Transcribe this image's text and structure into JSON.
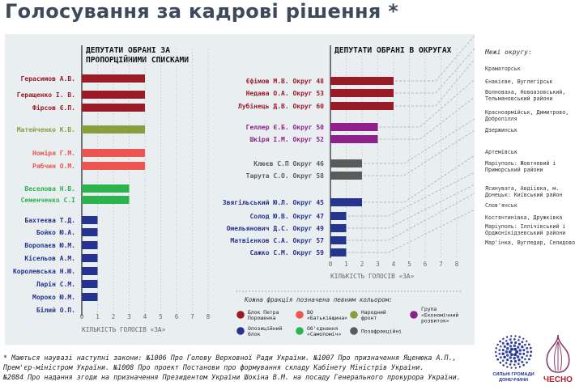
{
  "title": "Голосування за кадрові рішення *",
  "chart_data": [
    {
      "type": "bar",
      "orientation": "horizontal",
      "title": "ДЕПУТАТИ ОБРАНІ ЗА ПРОПОРЦІЙНИМИ СПИСКАМИ",
      "xlabel": "КІЛЬКІСТЬ ГОЛОСІВ «ЗА»",
      "xlim": [
        0,
        8
      ],
      "xticks": [
        "0",
        "1",
        "2",
        "3",
        "4",
        "5",
        "6",
        "7",
        "8"
      ],
      "categories": [
        "Герасимов А.В.",
        "Геращенко І. В.",
        "Фірсов Є.П.",
        "Матейченко К.В.",
        "Номіря Г.М.",
        "Рябчин О.М.",
        "Веселова Н.В.",
        "Семенченко С.І",
        "Бахтеєва Т.Д.",
        "Бойко Ю.А.",
        "Воропаєв Ю.М.",
        "Кісельов А.М.",
        "Королевська Н.Ю.",
        "Ларін С.М.",
        "Мороко Ю.М.",
        "Білий О.П."
      ],
      "values": [
        4,
        4,
        4,
        4,
        4,
        4,
        3,
        3,
        1,
        1,
        1,
        1,
        1,
        1,
        1,
        0
      ],
      "factions": [
        "bpp",
        "bpp",
        "bpp",
        "nf",
        "batk",
        "batk",
        "samo",
        "samo",
        "opz",
        "opz",
        "opz",
        "opz",
        "opz",
        "opz",
        "opz",
        "opz"
      ]
    },
    {
      "type": "bar",
      "orientation": "horizontal",
      "title": "ДЕПУТАТИ ОБРАНІ В ОКРУГАХ",
      "xlabel": "КІЛЬКІСТЬ ГОЛОСІВ «ЗА»",
      "xlim": [
        0,
        8
      ],
      "xticks": [
        "0",
        "1",
        "2",
        "3",
        "4",
        "5",
        "6",
        "7",
        "8"
      ],
      "categories": [
        "Єфімов М.В. Округ 48",
        "Недава О.А. Округ 53",
        "Лубінець Д.В. Округ 60",
        "Геллер Є.Б. Округ 50",
        "Шкіря І.М. Округ 52",
        "Клюєв С.П Округ 46",
        "Тарута С.О. Округ 58",
        "Звягільський Ю.Л. Округ 45",
        "Солод Ю.В. Округ 47",
        "Омельянович Д.С. Округ 49",
        "Матвієнков С.А. Округ 57",
        "Сажко С.М. Округ 59"
      ],
      "values": [
        4,
        4,
        4,
        3,
        3,
        2,
        2,
        2,
        1,
        1,
        1,
        1
      ],
      "factions": [
        "bpp",
        "bpp",
        "bpp",
        "econ",
        "econ",
        "nonf",
        "nonf",
        "opz",
        "opz",
        "opz",
        "opz",
        "opz"
      ]
    }
  ],
  "colors": {
    "bpp": "#9b1b27",
    "batk": "#ee5550",
    "nf": "#86a03c",
    "econ": "#8f1f8a",
    "opz": "#26338f",
    "samo": "#2db34e",
    "nonf": "#5b5b5b",
    "leader_line": "#a0a8b0"
  },
  "legend": {
    "title": "Кожна фракція позначена певним кольором:",
    "items": [
      {
        "key": "bpp",
        "label": "Блок Петра Порошенка"
      },
      {
        "key": "batk",
        "label": "ВО «Батьківщина»"
      },
      {
        "key": "nf",
        "label": "Народний фронт"
      },
      {
        "key": "econ",
        "label": "Група «Економічний розвиток»"
      },
      {
        "key": "opz",
        "label": "Опозиційний блок"
      },
      {
        "key": "samo",
        "label": "Об'єднання «Самопоміч»"
      },
      {
        "key": "nonf",
        "label": "Позафракційні"
      }
    ]
  },
  "districts": {
    "title": "Межі округу:",
    "items": [
      "Краматорськ",
      "Єнакієве, Вуглегірськ",
      "Волноваха, Новоазовський, Тельмановський райони",
      "Красноармійськ, Димитрово, Добропілля",
      "Дзержинськ",
      "Артемівськ",
      "Маріуполь: Жовтневий і Приморський райони",
      "Ясинувата, Авдіївка, м. Донецьк: Київський район",
      "Слов'янськ",
      "Костянтинівка, Дружківка",
      "Маріуполь: Іллічівський і Орджонікідзевський райони",
      "Мар'їнка, Вугледар, Селидово"
    ]
  },
  "footnote": [
    "* Маються наувазі наступні закони: №1006 Про Голову Верховної Ради України. №1007 Про призначення Яценюка А.П.,",
    "Прем'єр-міністром України. №1008 Про проект Постанови про формування складу Кабінету Міністрів України.",
    "№2084 Про надання згоди на призначення Президентом України Шокіна В.М. на посаду Генерального прокурора України."
  ],
  "logos": {
    "hromady": [
      "СИЛЬНІ ГРОМАДИ",
      "ДОНЕЧЧИНИ"
    ],
    "chesno": "ЧЕСНО"
  }
}
